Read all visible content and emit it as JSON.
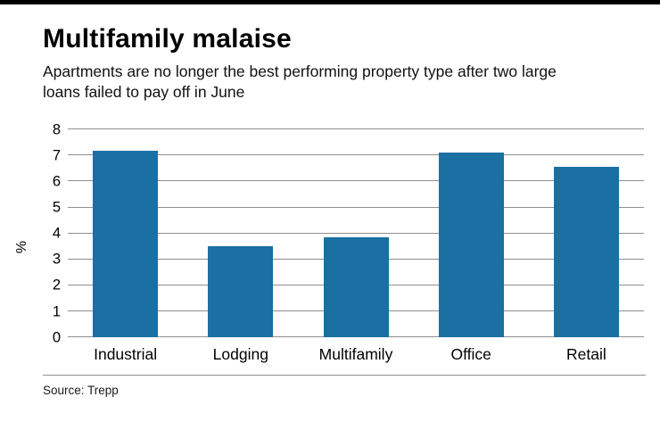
{
  "page": {
    "title": "Multifamily malaise",
    "subtitle": "Apartments are no longer the best performing property type after two large loans failed to pay off in June",
    "source": "Source: Trepp"
  },
  "chart_data": {
    "type": "bar",
    "title": "Multifamily malaise",
    "subtitle": "Apartments are no longer the best performing property type after two large loans failed to pay off in June",
    "categories": [
      "Industrial",
      "Lodging",
      "Multifamily",
      "Office",
      "Retail"
    ],
    "values": [
      7.2,
      3.5,
      3.85,
      7.1,
      6.55
    ],
    "xlabel": "",
    "ylabel": "%",
    "ylim": [
      0,
      8
    ],
    "ytick_step": 1,
    "grid": true,
    "legend": "none",
    "bar_color": "#1a6fa3",
    "gridline_color": "#8f8f8f",
    "source": "Source: Trepp"
  }
}
